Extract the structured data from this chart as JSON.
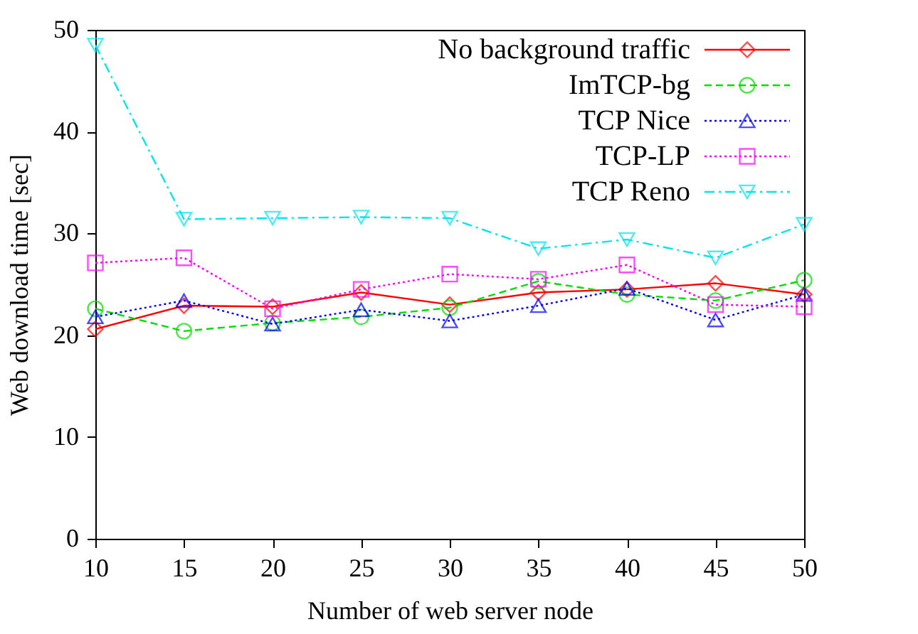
{
  "chart_data": {
    "type": "line",
    "xlabel": "Number of web server node",
    "ylabel": "Web download time [sec]",
    "x": [
      10,
      15,
      20,
      25,
      30,
      35,
      40,
      45,
      50
    ],
    "xlim": [
      10,
      50
    ],
    "xticks": [
      10,
      15,
      20,
      25,
      30,
      35,
      40,
      45,
      50
    ],
    "ylim": [
      0,
      50
    ],
    "yticks": [
      0,
      10,
      20,
      30,
      40,
      50
    ],
    "grid": false,
    "legend": "top right",
    "series": [
      {
        "name": "No background traffic",
        "color": "#ff0000",
        "marker": "diamond",
        "line_style": "solid",
        "values": [
          20.6,
          22.9,
          22.8,
          24.2,
          23.0,
          24.2,
          24.5,
          25.1,
          24.0
        ]
      },
      {
        "name": "ImTCP-bg",
        "color": "#00dd00",
        "marker": "circle",
        "line_style": "dashed",
        "values": [
          22.6,
          20.4,
          21.2,
          21.8,
          22.7,
          25.3,
          24.0,
          23.4,
          25.4
        ]
      },
      {
        "name": "TCP Nice",
        "color": "#0000ff",
        "marker": "triangle",
        "line_style": "dotted",
        "values": [
          21.8,
          23.4,
          21.1,
          22.5,
          21.4,
          22.9,
          24.6,
          21.5,
          24.0
        ]
      },
      {
        "name": "TCP-LP",
        "color": "#ff00ff",
        "marker": "square",
        "line_style": "dotted",
        "values": [
          27.1,
          27.6,
          22.6,
          24.5,
          26.0,
          25.5,
          26.9,
          23.0,
          22.8
        ]
      },
      {
        "name": "TCP Reno",
        "color": "#00e5ee",
        "marker": "triangle-down",
        "line_style": "dashdot",
        "values": [
          48.5,
          31.4,
          31.5,
          31.6,
          31.5,
          28.5,
          29.4,
          27.6,
          30.9
        ]
      }
    ]
  }
}
